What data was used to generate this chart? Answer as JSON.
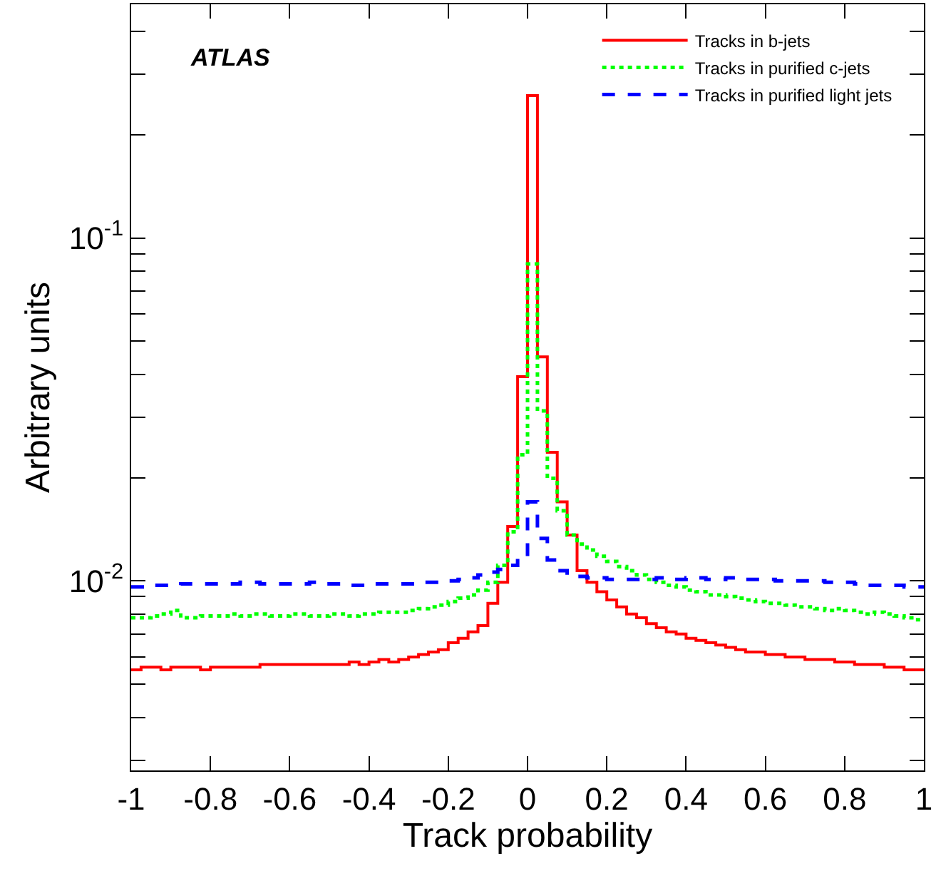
{
  "chart_data": {
    "type": "histogram",
    "xlabel": "Track probability",
    "ylabel": "Arbitrary units",
    "annotations": [
      "ATLAS"
    ],
    "bins": [
      -1,
      -0.975,
      -0.95,
      -0.925,
      -0.9,
      -0.875,
      -0.85,
      -0.825,
      -0.8,
      -0.775,
      -0.75,
      -0.725,
      -0.7,
      -0.675,
      -0.65,
      -0.625,
      -0.6,
      -0.575,
      -0.55,
      -0.525,
      -0.5,
      -0.475,
      -0.45,
      -0.425,
      -0.4,
      -0.375,
      -0.35,
      -0.325,
      -0.3,
      -0.275,
      -0.25,
      -0.225,
      -0.2,
      -0.175,
      -0.15,
      -0.125,
      -0.1,
      -0.075,
      -0.05,
      -0.025,
      0,
      0.025,
      0.05,
      0.075,
      0.1,
      0.125,
      0.15,
      0.175,
      0.2,
      0.225,
      0.25,
      0.275,
      0.3,
      0.325,
      0.35,
      0.375,
      0.4,
      0.425,
      0.45,
      0.475,
      0.5,
      0.525,
      0.55,
      0.575,
      0.6,
      0.625,
      0.65,
      0.675,
      0.7,
      0.725,
      0.75,
      0.775,
      0.8,
      0.825,
      0.85,
      0.875,
      0.9,
      0.925,
      0.95,
      0.975,
      1
    ],
    "series": [
      {
        "name": "Tracks in b-jets",
        "color": "#ff0000",
        "line_style": "solid",
        "values": [
          0.0055,
          0.0056,
          0.0056,
          0.0055,
          0.0056,
          0.0056,
          0.0056,
          0.0055,
          0.0056,
          0.0056,
          0.0056,
          0.0056,
          0.0056,
          0.0057,
          0.0057,
          0.0057,
          0.0057,
          0.0057,
          0.0057,
          0.0057,
          0.0057,
          0.0057,
          0.0058,
          0.0057,
          0.0058,
          0.0059,
          0.0058,
          0.0059,
          0.006,
          0.0061,
          0.0062,
          0.0063,
          0.0066,
          0.0068,
          0.0071,
          0.0074,
          0.0086,
          0.0099,
          0.0144,
          0.0394,
          0.26,
          0.045,
          0.0237,
          0.017,
          0.0136,
          0.0107,
          0.0099,
          0.0093,
          0.0088,
          0.0084,
          0.008,
          0.0078,
          0.0075,
          0.0073,
          0.0071,
          0.007,
          0.0068,
          0.0067,
          0.0066,
          0.0065,
          0.0064,
          0.0063,
          0.0062,
          0.0062,
          0.0061,
          0.0061,
          0.006,
          0.006,
          0.0059,
          0.0059,
          0.0059,
          0.0058,
          0.0058,
          0.0057,
          0.0057,
          0.0057,
          0.0056,
          0.0056,
          0.0055,
          0.0055
        ]
      },
      {
        "name": "Tracks in purified c-jets",
        "color": "#00ff00",
        "line_style": "dotted",
        "values": [
          0.0078,
          0.0078,
          0.0079,
          0.008,
          0.0082,
          0.0078,
          0.0078,
          0.0079,
          0.0079,
          0.0079,
          0.008,
          0.0079,
          0.008,
          0.008,
          0.0079,
          0.0079,
          0.008,
          0.008,
          0.0079,
          0.0079,
          0.008,
          0.008,
          0.0079,
          0.008,
          0.008,
          0.0081,
          0.0081,
          0.0081,
          0.0082,
          0.0083,
          0.0084,
          0.0085,
          0.0087,
          0.0089,
          0.0091,
          0.0094,
          0.0099,
          0.0111,
          0.0139,
          0.0233,
          0.084,
          0.0313,
          0.0199,
          0.016,
          0.0136,
          0.0128,
          0.0123,
          0.0118,
          0.0114,
          0.011,
          0.0107,
          0.0104,
          0.0101,
          0.0099,
          0.0097,
          0.0096,
          0.0094,
          0.0093,
          0.0091,
          0.0091,
          0.009,
          0.0089,
          0.0088,
          0.0087,
          0.0086,
          0.0086,
          0.0085,
          0.0084,
          0.0084,
          0.0083,
          0.0082,
          0.0083,
          0.0082,
          0.0081,
          0.008,
          0.0081,
          0.008,
          0.0079,
          0.0078,
          0.0077
        ]
      },
      {
        "name": "Tracks in purified light jets",
        "color": "#0000ff",
        "line_style": "dashed",
        "values": [
          0.0096,
          0.0096,
          0.0097,
          0.0097,
          0.0097,
          0.0098,
          0.0098,
          0.0098,
          0.0098,
          0.0098,
          0.0098,
          0.0099,
          0.0099,
          0.0098,
          0.0098,
          0.0098,
          0.0098,
          0.0098,
          0.0099,
          0.0098,
          0.0098,
          0.0098,
          0.0097,
          0.0097,
          0.0098,
          0.0098,
          0.0098,
          0.0098,
          0.0098,
          0.0099,
          0.0099,
          0.0099,
          0.01,
          0.0101,
          0.0102,
          0.0104,
          0.0106,
          0.0108,
          0.0111,
          0.0118,
          0.017,
          0.0133,
          0.0115,
          0.0107,
          0.0104,
          0.0103,
          0.0102,
          0.0102,
          0.0101,
          0.0101,
          0.0101,
          0.0101,
          0.0101,
          0.0102,
          0.0101,
          0.0101,
          0.0102,
          0.0102,
          0.0101,
          0.0101,
          0.0102,
          0.0101,
          0.0101,
          0.0101,
          0.0101,
          0.01,
          0.01,
          0.01,
          0.01,
          0.01,
          0.0099,
          0.0099,
          0.0099,
          0.0098,
          0.0097,
          0.0097,
          0.0097,
          0.0097,
          0.0096,
          0.0096
        ]
      }
    ],
    "log": "y",
    "legend": "top right",
    "xlim": [
      -1,
      1
    ],
    "xticks": [
      -1,
      -0.8,
      -0.6,
      -0.4,
      -0.2,
      0,
      0.2,
      0.4,
      0.6,
      0.8,
      1
    ],
    "ylim": [
      0.0028,
      0.48
    ],
    "yticks": [
      {
        "value": 0.003,
        "label": null
      },
      {
        "value": 0.004,
        "label": null
      },
      {
        "value": 0.005,
        "label": null
      },
      {
        "value": 0.006,
        "label": null
      },
      {
        "value": 0.007,
        "label": null
      },
      {
        "value": 0.008,
        "label": null
      },
      {
        "value": 0.009,
        "label": null
      },
      {
        "value": 0.01,
        "label": "10$^{-2}$"
      },
      {
        "value": 0.02,
        "label": null
      },
      {
        "value": 0.03,
        "label": null
      },
      {
        "value": 0.04,
        "label": null
      },
      {
        "value": 0.05,
        "label": null
      },
      {
        "value": 0.06,
        "label": null
      },
      {
        "value": 0.07,
        "label": null
      },
      {
        "value": 0.08,
        "label": null
      },
      {
        "value": 0.09,
        "label": null
      },
      {
        "value": 0.1,
        "label": "10$^{-1}$"
      },
      {
        "value": 0.2,
        "label": null
      },
      {
        "value": 0.3,
        "label": null
      },
      {
        "value": 0.4,
        "label": null
      }
    ]
  }
}
